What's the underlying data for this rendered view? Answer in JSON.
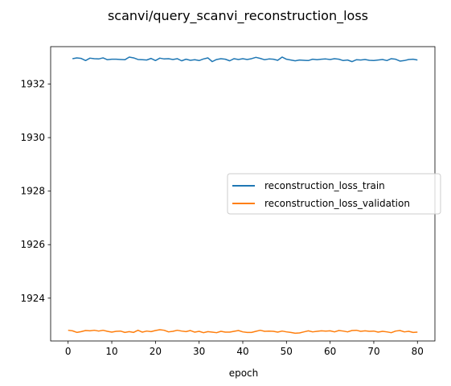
{
  "chart_data": {
    "type": "line",
    "title": "scanvi/query_scanvi_reconstruction_loss",
    "xlabel": "epoch",
    "ylabel": "",
    "xlim": [
      -4,
      84
    ],
    "ylim": [
      1922.4,
      1933.4
    ],
    "xticks": [
      0,
      10,
      20,
      30,
      40,
      50,
      60,
      70,
      80
    ],
    "yticks": [
      1924,
      1926,
      1928,
      1930,
      1932
    ],
    "grid": false,
    "legend": "center-right",
    "series": [
      {
        "name": "reconstruction_loss_train",
        "color": "#1f77b4",
        "x_start": 1,
        "x_step": 1,
        "values": [
          1932.95,
          1932.98,
          1932.96,
          1932.88,
          1932.97,
          1932.95,
          1932.94,
          1932.98,
          1932.91,
          1932.93,
          1932.93,
          1932.92,
          1932.91,
          1933.01,
          1932.98,
          1932.92,
          1932.91,
          1932.9,
          1932.96,
          1932.88,
          1932.97,
          1932.94,
          1932.95,
          1932.92,
          1932.95,
          1932.87,
          1932.93,
          1932.89,
          1932.91,
          1932.88,
          1932.94,
          1932.98,
          1932.84,
          1932.92,
          1932.95,
          1932.93,
          1932.87,
          1932.95,
          1932.92,
          1932.95,
          1932.92,
          1932.95,
          1933.0,
          1932.96,
          1932.91,
          1932.94,
          1932.93,
          1932.89,
          1933.01,
          1932.93,
          1932.9,
          1932.87,
          1932.9,
          1932.89,
          1932.88,
          1932.93,
          1932.91,
          1932.93,
          1932.94,
          1932.92,
          1932.95,
          1932.93,
          1932.88,
          1932.9,
          1932.84,
          1932.91,
          1932.9,
          1932.92,
          1932.89,
          1932.88,
          1932.9,
          1932.92,
          1932.88,
          1932.95,
          1932.93,
          1932.86,
          1932.88,
          1932.92,
          1932.93,
          1932.9
        ]
      },
      {
        "name": "reconstruction_loss_validation",
        "color": "#ff7f0e",
        "x_start": 0,
        "x_step": 1,
        "values": [
          1922.8,
          1922.78,
          1922.72,
          1922.75,
          1922.79,
          1922.78,
          1922.8,
          1922.77,
          1922.8,
          1922.76,
          1922.73,
          1922.76,
          1922.77,
          1922.72,
          1922.75,
          1922.72,
          1922.8,
          1922.73,
          1922.77,
          1922.75,
          1922.79,
          1922.82,
          1922.8,
          1922.74,
          1922.76,
          1922.8,
          1922.77,
          1922.75,
          1922.79,
          1922.73,
          1922.76,
          1922.71,
          1922.75,
          1922.73,
          1922.71,
          1922.76,
          1922.73,
          1922.73,
          1922.76,
          1922.79,
          1922.74,
          1922.72,
          1922.72,
          1922.76,
          1922.8,
          1922.76,
          1922.77,
          1922.76,
          1922.73,
          1922.77,
          1922.74,
          1922.72,
          1922.69,
          1922.7,
          1922.74,
          1922.78,
          1922.74,
          1922.76,
          1922.78,
          1922.77,
          1922.78,
          1922.74,
          1922.79,
          1922.77,
          1922.74,
          1922.79,
          1922.8,
          1922.76,
          1922.78,
          1922.76,
          1922.77,
          1922.73,
          1922.76,
          1922.74,
          1922.71,
          1922.77,
          1922.79,
          1922.74,
          1922.76,
          1922.72,
          1922.73
        ]
      }
    ]
  }
}
